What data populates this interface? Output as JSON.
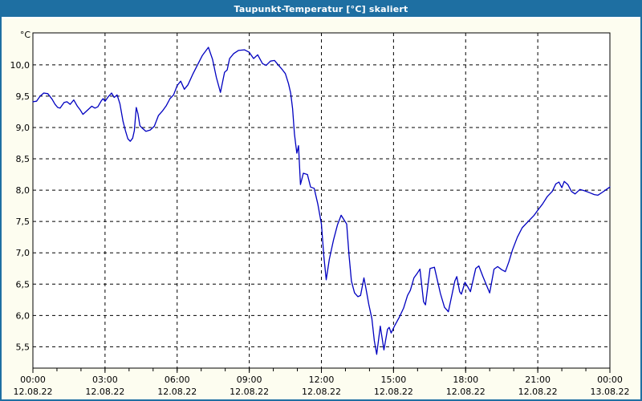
{
  "window": {
    "title": "Taupunkt-Temperatur [°C] skaliert"
  },
  "colors": {
    "frame_blue": "#1e6fa2",
    "background_cream": "#fdfdf0",
    "plot_background": "#ffffff",
    "line_blue": "#0000c0",
    "axis_black": "#000000"
  },
  "chart_data": {
    "type": "line",
    "title": "Taupunkt-Temperatur [°C] skaliert",
    "ylabel": "°C",
    "xlabel": "",
    "grid": "dashed",
    "legend_position": "none",
    "xlim_hours": [
      0,
      24
    ],
    "ylim": [
      5.16,
      10.51
    ],
    "y_ticks": [
      {
        "value": 10.0,
        "label": "10,0"
      },
      {
        "value": 9.5,
        "label": "9,5"
      },
      {
        "value": 9.0,
        "label": "9,0"
      },
      {
        "value": 8.5,
        "label": "8,5"
      },
      {
        "value": 8.0,
        "label": "8,0"
      },
      {
        "value": 7.5,
        "label": "7,5"
      },
      {
        "value": 7.0,
        "label": "7,0"
      },
      {
        "value": 6.5,
        "label": "6,5"
      },
      {
        "value": 6.0,
        "label": "6,0"
      },
      {
        "value": 5.5,
        "label": "5,5"
      }
    ],
    "x_ticks": [
      {
        "hour": 0,
        "label": "00:00",
        "date": "12.08.22"
      },
      {
        "hour": 3,
        "label": "03:00",
        "date": "12.08.22"
      },
      {
        "hour": 6,
        "label": "06:00",
        "date": "12.08.22"
      },
      {
        "hour": 9,
        "label": "09:00",
        "date": "12.08.22"
      },
      {
        "hour": 12,
        "label": "12:00",
        "date": "12.08.22"
      },
      {
        "hour": 15,
        "label": "15:00",
        "date": "12.08.22"
      },
      {
        "hour": 18,
        "label": "18:00",
        "date": "12.08.22"
      },
      {
        "hour": 21,
        "label": "21:00",
        "date": "12.08.22"
      },
      {
        "hour": 24,
        "label": "00:00",
        "date": "13.08.22"
      }
    ],
    "minor_tick_every_hours": 1,
    "series": [
      {
        "name": "Taupunkt-Temperatur",
        "color": "#0000c0",
        "points": [
          [
            0.0,
            9.41
          ],
          [
            0.15,
            9.42
          ],
          [
            0.3,
            9.5
          ],
          [
            0.45,
            9.55
          ],
          [
            0.62,
            9.54
          ],
          [
            0.8,
            9.45
          ],
          [
            0.92,
            9.37
          ],
          [
            1.03,
            9.32
          ],
          [
            1.13,
            9.31
          ],
          [
            1.3,
            9.4
          ],
          [
            1.42,
            9.41
          ],
          [
            1.55,
            9.37
          ],
          [
            1.7,
            9.44
          ],
          [
            1.85,
            9.34
          ],
          [
            1.97,
            9.28
          ],
          [
            2.08,
            9.21
          ],
          [
            2.28,
            9.28
          ],
          [
            2.45,
            9.34
          ],
          [
            2.58,
            9.31
          ],
          [
            2.7,
            9.33
          ],
          [
            2.85,
            9.43
          ],
          [
            2.92,
            9.46
          ],
          [
            3.0,
            9.42
          ],
          [
            3.13,
            9.49
          ],
          [
            3.27,
            9.55
          ],
          [
            3.38,
            9.48
          ],
          [
            3.5,
            9.52
          ],
          [
            3.62,
            9.38
          ],
          [
            3.75,
            9.1
          ],
          [
            3.85,
            8.95
          ],
          [
            3.95,
            8.82
          ],
          [
            4.05,
            8.78
          ],
          [
            4.15,
            8.83
          ],
          [
            4.22,
            8.95
          ],
          [
            4.3,
            9.32
          ],
          [
            4.37,
            9.22
          ],
          [
            4.45,
            9.03
          ],
          [
            4.52,
            9.0
          ],
          [
            4.7,
            8.94
          ],
          [
            4.88,
            8.96
          ],
          [
            5.05,
            9.02
          ],
          [
            5.22,
            9.19
          ],
          [
            5.4,
            9.27
          ],
          [
            5.55,
            9.35
          ],
          [
            5.7,
            9.46
          ],
          [
            5.85,
            9.52
          ],
          [
            6.0,
            9.67
          ],
          [
            6.15,
            9.74
          ],
          [
            6.3,
            9.61
          ],
          [
            6.45,
            9.68
          ],
          [
            6.65,
            9.85
          ],
          [
            6.85,
            10.0
          ],
          [
            7.05,
            10.15
          ],
          [
            7.3,
            10.28
          ],
          [
            7.47,
            10.09
          ],
          [
            7.63,
            9.8
          ],
          [
            7.8,
            9.56
          ],
          [
            7.97,
            9.88
          ],
          [
            8.08,
            9.92
          ],
          [
            8.18,
            10.1
          ],
          [
            8.35,
            10.18
          ],
          [
            8.55,
            10.23
          ],
          [
            8.8,
            10.24
          ],
          [
            9.0,
            10.2
          ],
          [
            9.18,
            10.1
          ],
          [
            9.35,
            10.16
          ],
          [
            9.55,
            10.02
          ],
          [
            9.7,
            9.99
          ],
          [
            9.88,
            10.06
          ],
          [
            10.05,
            10.07
          ],
          [
            10.22,
            9.99
          ],
          [
            10.38,
            9.92
          ],
          [
            10.5,
            9.86
          ],
          [
            10.63,
            9.7
          ],
          [
            10.72,
            9.55
          ],
          [
            10.8,
            9.3
          ],
          [
            10.88,
            8.9
          ],
          [
            10.93,
            8.74
          ],
          [
            10.98,
            8.59
          ],
          [
            11.05,
            8.71
          ],
          [
            11.13,
            8.09
          ],
          [
            11.25,
            8.27
          ],
          [
            11.42,
            8.25
          ],
          [
            11.55,
            8.05
          ],
          [
            11.7,
            8.03
          ],
          [
            11.85,
            7.78
          ],
          [
            12.0,
            7.46
          ],
          [
            12.1,
            6.95
          ],
          [
            12.2,
            6.57
          ],
          [
            12.33,
            6.9
          ],
          [
            12.5,
            7.2
          ],
          [
            12.67,
            7.45
          ],
          [
            12.82,
            7.6
          ],
          [
            12.95,
            7.52
          ],
          [
            13.05,
            7.46
          ],
          [
            13.15,
            6.95
          ],
          [
            13.25,
            6.55
          ],
          [
            13.38,
            6.36
          ],
          [
            13.52,
            6.3
          ],
          [
            13.63,
            6.32
          ],
          [
            13.77,
            6.6
          ],
          [
            13.85,
            6.44
          ],
          [
            13.97,
            6.18
          ],
          [
            14.1,
            5.95
          ],
          [
            14.2,
            5.6
          ],
          [
            14.3,
            5.38
          ],
          [
            14.45,
            5.83
          ],
          [
            14.6,
            5.45
          ],
          [
            14.75,
            5.78
          ],
          [
            14.82,
            5.81
          ],
          [
            14.9,
            5.72
          ],
          [
            15.05,
            5.84
          ],
          [
            15.25,
            5.98
          ],
          [
            15.42,
            6.12
          ],
          [
            15.58,
            6.32
          ],
          [
            15.7,
            6.4
          ],
          [
            15.85,
            6.6
          ],
          [
            16.0,
            6.68
          ],
          [
            16.1,
            6.74
          ],
          [
            16.25,
            6.22
          ],
          [
            16.33,
            6.17
          ],
          [
            16.52,
            6.75
          ],
          [
            16.7,
            6.77
          ],
          [
            16.95,
            6.35
          ],
          [
            17.12,
            6.13
          ],
          [
            17.28,
            6.06
          ],
          [
            17.55,
            6.55
          ],
          [
            17.63,
            6.62
          ],
          [
            17.75,
            6.38
          ],
          [
            17.82,
            6.34
          ],
          [
            17.97,
            6.53
          ],
          [
            18.1,
            6.45
          ],
          [
            18.2,
            6.38
          ],
          [
            18.42,
            6.75
          ],
          [
            18.55,
            6.79
          ],
          [
            18.72,
            6.62
          ],
          [
            19.0,
            6.36
          ],
          [
            19.18,
            6.74
          ],
          [
            19.33,
            6.78
          ],
          [
            19.5,
            6.73
          ],
          [
            19.65,
            6.7
          ],
          [
            19.8,
            6.86
          ],
          [
            19.95,
            7.05
          ],
          [
            20.15,
            7.25
          ],
          [
            20.35,
            7.4
          ],
          [
            20.6,
            7.5
          ],
          [
            20.85,
            7.6
          ],
          [
            21.0,
            7.68
          ],
          [
            21.2,
            7.78
          ],
          [
            21.4,
            7.9
          ],
          [
            21.6,
            7.98
          ],
          [
            21.75,
            8.1
          ],
          [
            21.88,
            8.13
          ],
          [
            22.0,
            8.04
          ],
          [
            22.1,
            8.14
          ],
          [
            22.25,
            8.09
          ],
          [
            22.4,
            7.98
          ],
          [
            22.55,
            7.94
          ],
          [
            22.75,
            8.01
          ],
          [
            22.95,
            7.99
          ],
          [
            23.15,
            7.96
          ],
          [
            23.35,
            7.93
          ],
          [
            23.5,
            7.92
          ],
          [
            23.7,
            7.97
          ],
          [
            23.85,
            8.01
          ],
          [
            24.0,
            8.05
          ]
        ]
      }
    ]
  }
}
